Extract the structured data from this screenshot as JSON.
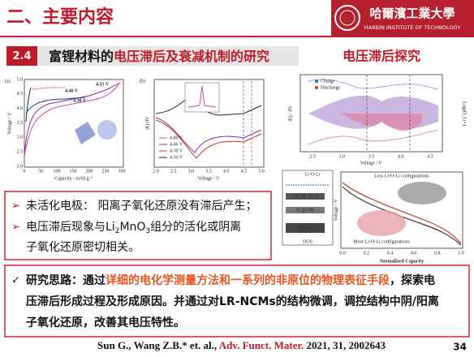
{
  "header": {
    "title": "二、主要内容",
    "logo_cn": "哈爾濱工業大學",
    "logo_en": "HARBIN INSTITUTE OF TECHNOLOGY"
  },
  "section": {
    "number": "2.4",
    "title_plain": "富锂材料的",
    "title_red": "电压滞后及衰减机制的研究",
    "side_title": "电压滞后探究"
  },
  "figures": {
    "a": {
      "panel": "(a)",
      "ylabel": "Voltage / V",
      "xlabel": "Capacity / mAh g⁻¹",
      "yticks": [
        "2.0",
        "2.5",
        "3.0",
        "3.5",
        "4.0",
        "4.5",
        "5.0"
      ],
      "xticks": [
        "0",
        "50",
        "100",
        "150",
        "200",
        "250",
        "300"
      ],
      "legend": [
        "4.46 V",
        "4.30 V",
        "4.55 V"
      ]
    },
    "b": {
      "panel": "(b)",
      "ylabel": "dQ/dV",
      "xlabel": "Voltage / V",
      "xticks": [
        "2.0",
        "2.5",
        "3.0",
        "3.5",
        "4.0",
        "4.5",
        "5.0"
      ],
      "legend": [
        "4.80 V",
        "4.46 V",
        "4.30 V",
        "4.10 V"
      ]
    },
    "c": {
      "ylabel": "dQ / dV",
      "y2label": "Log(D_Li+)",
      "xlabel": "Voltage / V",
      "xticks": [
        "2.5",
        "3.0",
        "3.5",
        "4.0",
        "4.5"
      ],
      "legend": [
        "Charge",
        "Discharge"
      ]
    },
    "d": {
      "labels": [
        "Li-O-Li",
        "TM 3d - O 2p",
        "O 2p NB",
        "O 2p σ",
        "DOS"
      ]
    },
    "e": {
      "ylabel": "Voltage / V",
      "xlabel": "Normalized Capacity",
      "xticks": [
        "0.0",
        "0.2",
        "0.4",
        "0.6",
        "0.8",
        "1.0"
      ],
      "top_note": "Less Li-O-Li configurations",
      "bottom_note": "More Li-O-Li configurations"
    }
  },
  "points": {
    "bullet": "➢",
    "item1": "未活化电极： 阳离子氧化还原没有滞后产生；",
    "item2_line1": [
      "电压滞后现象与Li",
      "2",
      "MnO",
      "3",
      "组分的活化或阴离"
    ],
    "item2_line2": "子氧化还原密切相关。"
  },
  "approach": {
    "mark": "✓",
    "line1_plain": "研究思路：通过",
    "line1_red": "详细的电化学测量方法和一系列的非原位的物理表征手段",
    "line1_end": "，探索电",
    "line2": "压滞后形成过程及形成原因。并通过对LR-NCMs的结构微调，调控结构中阴/阳离",
    "line3": "子氧化还原，改善其电压特性。"
  },
  "citation": {
    "authors": "Sun G., Wang Z.B.* et. al.,",
    "journal": "Adv. Funct. Mater.",
    "details": "2021, 31, 2002643"
  },
  "page_number": "34"
}
